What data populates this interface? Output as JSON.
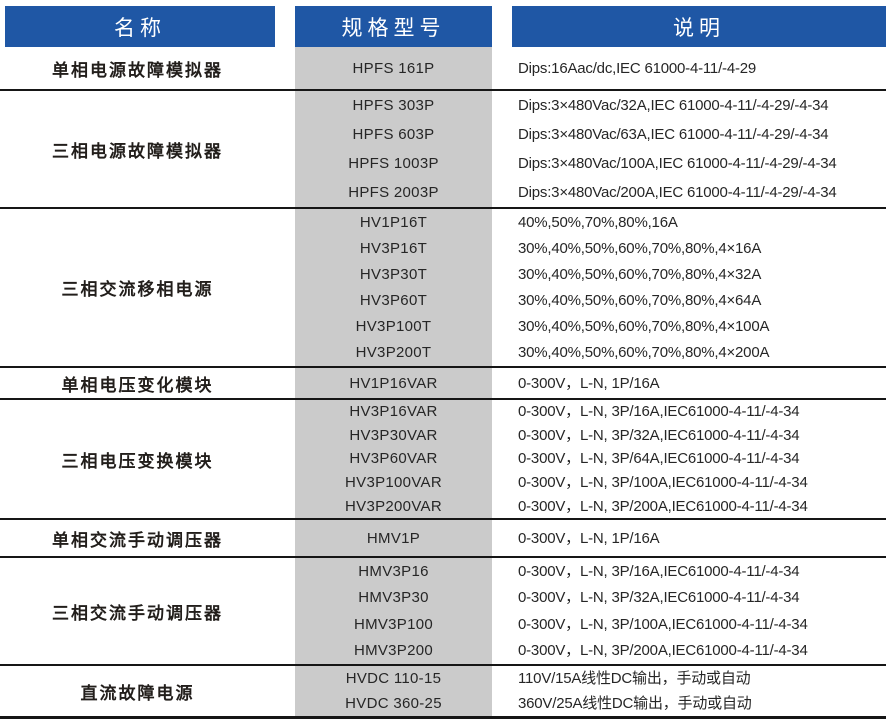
{
  "header": {
    "name_label": "名称",
    "model_label": "规格型号",
    "desc_label": "说明"
  },
  "colors": {
    "header_bg": "#1f57a5",
    "header_text": "#ffffff",
    "model_column_bg": "#cbcbcb",
    "separator_line": "#161616",
    "body_text": "#262626"
  },
  "groups": [
    {
      "name": "单相电源故障模拟器",
      "rows": [
        {
          "model": "HPFS 161P",
          "desc": "Dips:16Aac/dc,IEC 61000-4-11/-4-29"
        }
      ]
    },
    {
      "name": "三相电源故障模拟器",
      "rows": [
        {
          "model": "HPFS 303P",
          "desc": "Dips:3×480Vac/32A,IEC 61000-4-11/-4-29/-4-34"
        },
        {
          "model": "HPFS 603P",
          "desc": "Dips:3×480Vac/63A,IEC 61000-4-11/-4-29/-4-34"
        },
        {
          "model": "HPFS 1003P",
          "desc": "Dips:3×480Vac/100A,IEC 61000-4-11/-4-29/-4-34"
        },
        {
          "model": "HPFS 2003P",
          "desc": "Dips:3×480Vac/200A,IEC 61000-4-11/-4-29/-4-34"
        }
      ]
    },
    {
      "name": "三相交流移相电源",
      "rows": [
        {
          "model": "HV1P16T",
          "desc": "40%,50%,70%,80%,16A"
        },
        {
          "model": "HV3P16T",
          "desc": "30%,40%,50%,60%,70%,80%,4×16A"
        },
        {
          "model": "HV3P30T",
          "desc": "30%,40%,50%,60%,70%,80%,4×32A"
        },
        {
          "model": "HV3P60T",
          "desc": "30%,40%,50%,60%,70%,80%,4×64A"
        },
        {
          "model": "HV3P100T",
          "desc": "30%,40%,50%,60%,70%,80%,4×100A"
        },
        {
          "model": "HV3P200T",
          "desc": "30%,40%,50%,60%,70%,80%,4×200A"
        }
      ]
    },
    {
      "name": "单相电压变化模块",
      "rows": [
        {
          "model": "HV1P16VAR",
          "desc": "0-300V，L-N, 1P/16A"
        }
      ]
    },
    {
      "name": "三相电压变换模块",
      "rows": [
        {
          "model": "HV3P16VAR",
          "desc": "0-300V，L-N, 3P/16A,IEC61000-4-11/-4-34"
        },
        {
          "model": "HV3P30VAR",
          "desc": "0-300V，L-N, 3P/32A,IEC61000-4-11/-4-34"
        },
        {
          "model": "HV3P60VAR",
          "desc": "0-300V，L-N, 3P/64A,IEC61000-4-11/-4-34"
        },
        {
          "model": "HV3P100VAR",
          "desc": "0-300V，L-N, 3P/100A,IEC61000-4-11/-4-34"
        },
        {
          "model": "HV3P200VAR",
          "desc": "0-300V，L-N, 3P/200A,IEC61000-4-11/-4-34"
        }
      ]
    },
    {
      "name": "单相交流手动调压器",
      "rows": [
        {
          "model": "HMV1P",
          "desc": "0-300V，L-N, 1P/16A"
        }
      ]
    },
    {
      "name": "三相交流手动调压器",
      "rows": [
        {
          "model": "HMV3P16",
          "desc": "0-300V，L-N, 3P/16A,IEC61000-4-11/-4-34"
        },
        {
          "model": "HMV3P30",
          "desc": "0-300V，L-N, 3P/32A,IEC61000-4-11/-4-34"
        },
        {
          "model": "HMV3P100",
          "desc": "0-300V，L-N, 3P/100A,IEC61000-4-11/-4-34"
        },
        {
          "model": "HMV3P200",
          "desc": "0-300V，L-N, 3P/200A,IEC61000-4-11/-4-34"
        }
      ]
    },
    {
      "name": "直流故障电源",
      "rows": [
        {
          "model": "HVDC 110-15",
          "desc": "110V/15A线性DC输出，手动或自动"
        },
        {
          "model": "HVDC 360-25",
          "desc": "360V/25A线性DC输出，手动或自动"
        }
      ]
    }
  ]
}
